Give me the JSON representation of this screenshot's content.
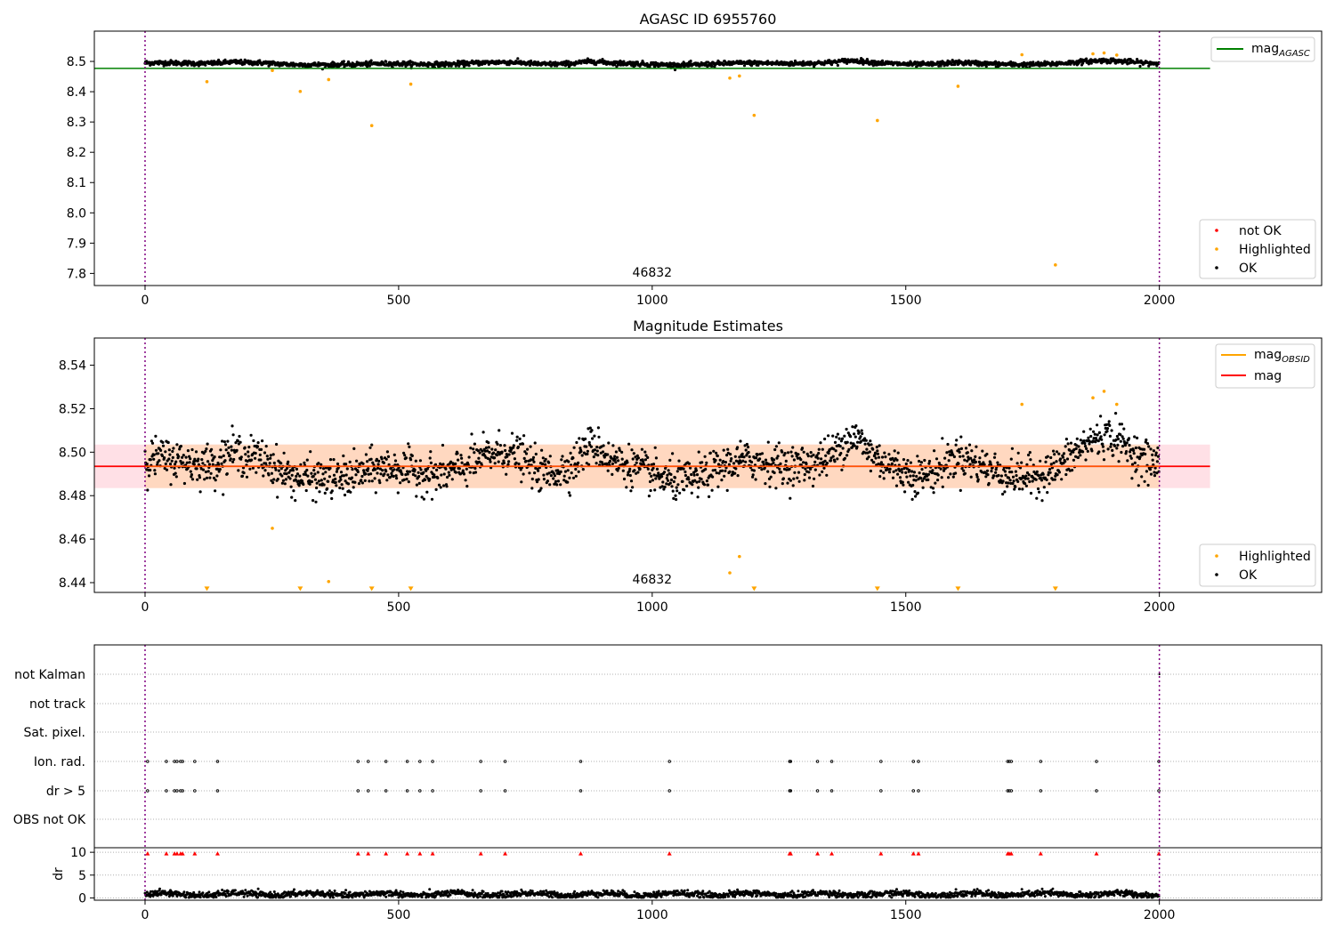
{
  "chart_data": [
    {
      "type": "scatter",
      "title": "AGASC ID 6955760",
      "xlim": [
        -100,
        2320
      ],
      "ylim": [
        7.76,
        8.6
      ],
      "x_ticks": [
        0,
        500,
        1000,
        1500,
        2000
      ],
      "x_tick_labels": [
        "0",
        "500",
        "1000",
        "1500",
        "2000"
      ],
      "y_ticks": [
        7.8,
        7.9,
        8.0,
        8.1,
        8.2,
        8.3,
        8.4,
        8.5
      ],
      "y_tick_labels": [
        "7.8",
        "7.9",
        "8.0",
        "8.1",
        "8.2",
        "8.3",
        "8.4",
        "8.5"
      ],
      "vlines": [
        0,
        2000
      ],
      "annotation": {
        "text": "46832",
        "x": 1000,
        "y": 7.79
      },
      "hline": {
        "name": "mag_AGASC",
        "y": 8.477,
        "x_range": [
          -100,
          2100
        ],
        "color": "#008000"
      },
      "ok_series": {
        "name": "OK",
        "n_points": 2000,
        "x_range": [
          0,
          2000
        ],
        "mean": 8.493,
        "spread": 0.012,
        "color": "#000000"
      },
      "highlighted": {
        "name": "Highlighted",
        "color": "#ffa500",
        "x": [
          122,
          251,
          306,
          362,
          447,
          524,
          1153,
          1172,
          1201,
          1444,
          1603,
          1729,
          1869,
          1891,
          1916,
          1795
        ],
        "y": [
          8.433,
          8.47,
          8.401,
          8.44,
          8.288,
          8.425,
          8.445,
          8.452,
          8.322,
          8.305,
          8.418,
          8.522,
          8.525,
          8.528,
          8.521,
          7.828
        ]
      },
      "legend_top": {
        "items": [
          {
            "label": "mag",
            "sub": "AGASC",
            "color": "#008000"
          }
        ],
        "position": "upper-right"
      },
      "legend_bottom": {
        "items": [
          {
            "label": "not OK",
            "color": "#ff0000"
          },
          {
            "label": "Highlighted",
            "color": "#ffa500"
          },
          {
            "label": "OK",
            "color": "#000000"
          }
        ],
        "position": "lower-right"
      }
    },
    {
      "type": "scatter",
      "title": "Magnitude Estimates",
      "xlim": [
        -100,
        2320
      ],
      "ylim": [
        8.4355,
        8.5525
      ],
      "x_ticks": [
        0,
        500,
        1000,
        1500,
        2000
      ],
      "x_tick_labels": [
        "0",
        "500",
        "1000",
        "1500",
        "2000"
      ],
      "y_ticks": [
        8.44,
        8.46,
        8.48,
        8.5,
        8.52,
        8.54
      ],
      "y_tick_labels": [
        "8.44",
        "8.46",
        "8.48",
        "8.50",
        "8.52",
        "8.54"
      ],
      "vlines": [
        0,
        2000
      ],
      "annotation": {
        "text": "46832",
        "x": 1000,
        "y": 8.4395
      },
      "band_mag": {
        "y_range": [
          8.4835,
          8.5035
        ],
        "x_range": [
          -100,
          2100
        ],
        "color": "#ffe0e6"
      },
      "band_obsid": {
        "y_range": [
          8.4835,
          8.5035
        ],
        "x_range": [
          0,
          2000
        ],
        "color": "#ffd8c0"
      },
      "mag_line": {
        "name": "mag",
        "y": 8.4935,
        "x_range": [
          -100,
          2100
        ],
        "color": "#ff0000"
      },
      "obsid_line": {
        "name": "mag_OBSID",
        "y": 8.4935,
        "x_range": [
          0,
          2000
        ],
        "color": "#ffa500"
      },
      "ok_series": {
        "name": "OK",
        "n_points": 2000,
        "x_range": [
          0,
          2000
        ],
        "mean": 8.4935,
        "spread": 0.007,
        "color": "#000000"
      },
      "highlighted": {
        "name": "Highlighted",
        "color": "#ffa500",
        "x": [
          251,
          362,
          1153,
          1172,
          1729,
          1869,
          1891,
          1916
        ],
        "y": [
          8.465,
          8.4405,
          8.4445,
          8.452,
          8.522,
          8.525,
          8.528,
          8.522
        ]
      },
      "clipped_markers": {
        "color": "#ffa500",
        "x": [
          122,
          306,
          447,
          524,
          1201,
          1444,
          1603,
          1795
        ],
        "y": 8.437
      },
      "legend_top": {
        "items": [
          {
            "label": "mag",
            "sub": "OBSID",
            "color": "#ffa500"
          },
          {
            "label": "mag",
            "color": "#ff0000"
          }
        ],
        "position": "upper-right"
      },
      "legend_bottom": {
        "items": [
          {
            "label": "Highlighted",
            "color": "#ffa500"
          },
          {
            "label": "OK",
            "color": "#000000"
          }
        ],
        "position": "lower-right"
      }
    },
    {
      "type": "scatter",
      "title": "",
      "xlim": [
        -100,
        2320
      ],
      "x_ticks": [
        0,
        500,
        1000,
        1500,
        2000
      ],
      "x_tick_labels": [
        "0",
        "500",
        "1000",
        "1500",
        "2000"
      ],
      "vlines": [
        0,
        2000
      ],
      "flag_rows": [
        "not Kalman",
        "not track",
        "Sat. pixel.",
        "Ion. rad.",
        "dr > 5",
        "OBS not OK"
      ],
      "flag_x": [
        5,
        42,
        58,
        63,
        70,
        74,
        98,
        143,
        420,
        440,
        475,
        517,
        542,
        567,
        662,
        710,
        859,
        1034,
        1271,
        1273,
        1326,
        1354,
        1451,
        1515,
        1525,
        1701,
        1704,
        1708,
        1766,
        1876,
        1999
      ],
      "flag_rows_flagged": [
        "Ion. rad.",
        "dr > 5"
      ],
      "not_kalman_x": [
        2000
      ],
      "dr": {
        "ylabel": "dr",
        "ylim": [
          -0.5,
          11
        ],
        "y_ticks": [
          0,
          5,
          10
        ],
        "y_tick_labels": [
          "0",
          "5",
          "10"
        ],
        "n_points": 2000,
        "mean": 0.8,
        "spread": 0.35,
        "outlier": {
          "x": 1790,
          "y": 2.0
        },
        "clipped_color": "#ff0000",
        "clipped_y": 9.7
      }
    }
  ]
}
